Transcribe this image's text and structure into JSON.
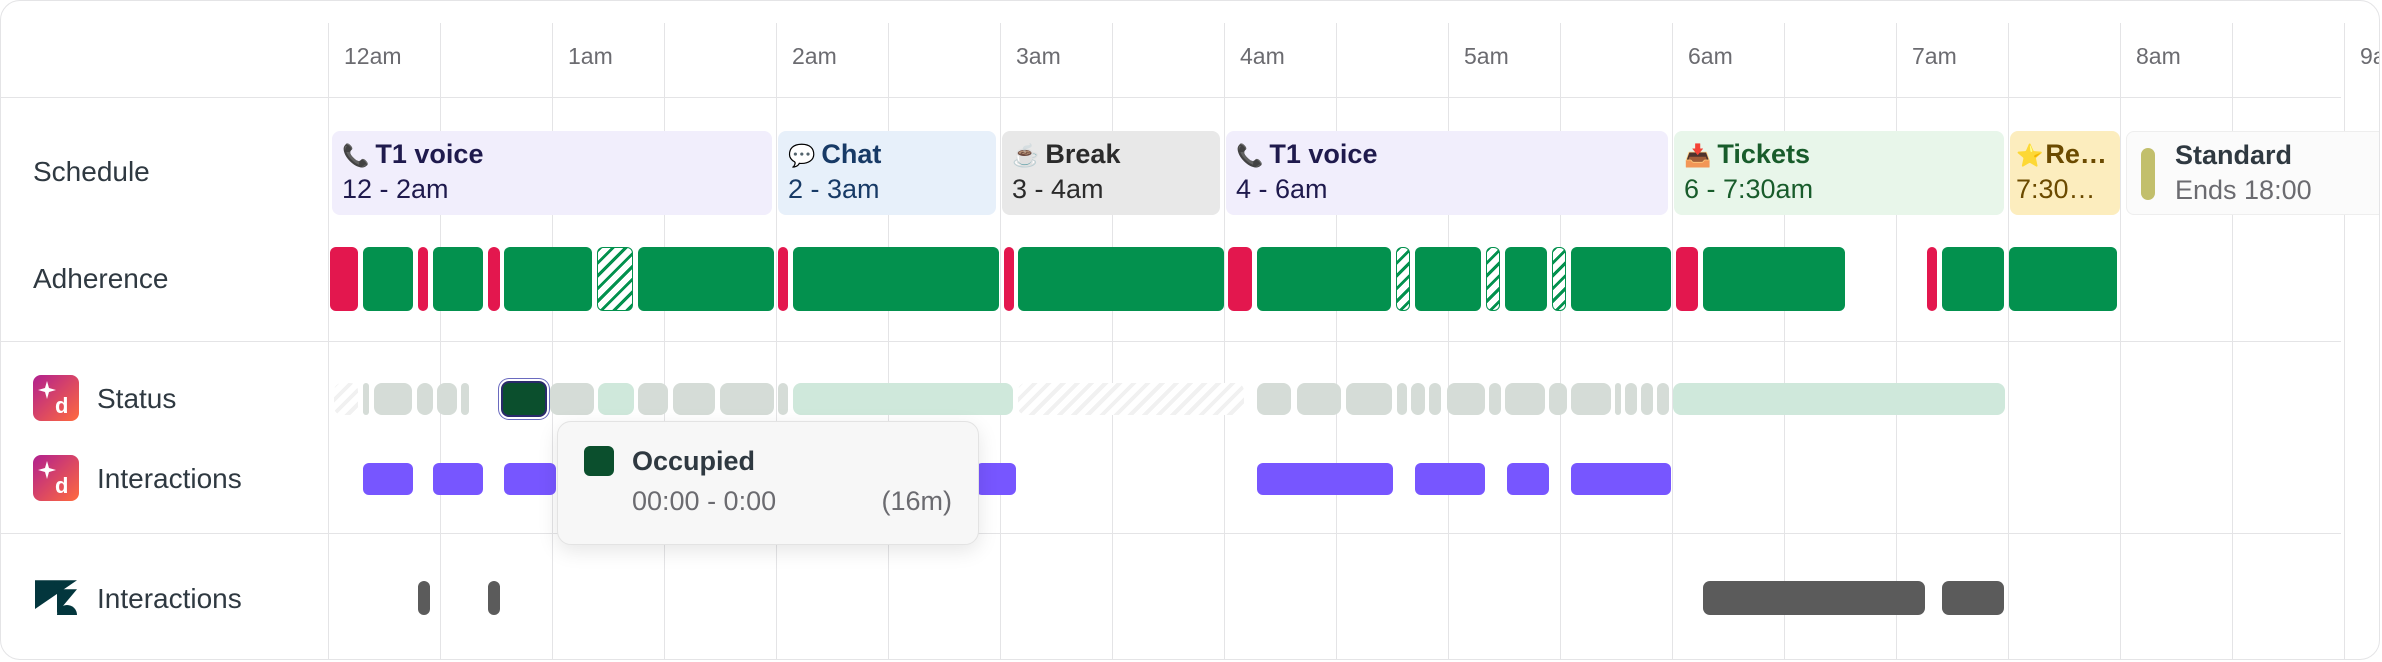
{
  "timeline": {
    "hours": [
      "12am",
      "1am",
      "2am",
      "3am",
      "4am",
      "5am",
      "6am",
      "7am",
      "8am",
      "9a"
    ]
  },
  "rows": {
    "schedule": "Schedule",
    "adherence": "Adherence",
    "status": "Status",
    "interactions_d": "Interactions",
    "interactions_zendesk": "Interactions"
  },
  "schedule_blocks": [
    {
      "icon": "📞",
      "title": "T1 voice",
      "time": "12 - 2am",
      "style": "violet"
    },
    {
      "icon": "💬",
      "title": "Chat",
      "time": "2 - 3am",
      "style": "blue"
    },
    {
      "icon": "☕",
      "title": "Break",
      "time": "3 - 4am",
      "style": "gray"
    },
    {
      "icon": "📞",
      "title": "T1 voice",
      "time": "4 - 6am",
      "style": "violet"
    },
    {
      "icon": "📥",
      "title": "Tickets",
      "time": "6 - 7:30am",
      "style": "green"
    },
    {
      "icon": "⭐",
      "title": "Re…",
      "time": "7:30…",
      "style": "yellow"
    },
    {
      "icon": "",
      "title": "Standard",
      "time": "Ends 18:00",
      "style": "std"
    }
  ],
  "adherence_legend": {
    "in_adherence": "#03914e",
    "out_of_adherence": "#e3174e"
  },
  "status_colors": {
    "occupied": "#0b4f2d",
    "light": "#d5dcd7",
    "mint": "#cfe8db"
  },
  "interaction_color": "#7756ff",
  "zendesk_interaction_color": "#5b5b5b",
  "tooltip": {
    "title": "Occupied",
    "range": "00:00 - 0:00",
    "duration": "(16m)",
    "color": "#0b4f2d"
  },
  "app_icons": {
    "d_app": "d-sparkle-app-icon",
    "zendesk": "zendesk-logo-icon"
  }
}
